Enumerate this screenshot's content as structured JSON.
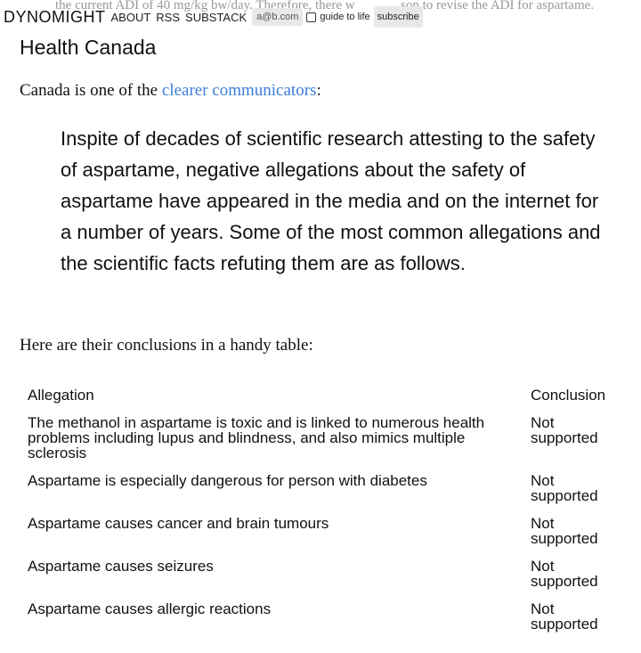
{
  "background_text": [
    "the current ADI of 40 mg/kg bw/day. Therefore, there w",
    "son to revise the ADI for aspartame."
  ],
  "header": {
    "brand": "DYNOMIGHT",
    "nav": [
      "ABOUT",
      "RSS",
      "SUBSTACK"
    ],
    "email_placeholder": "a@b.com",
    "checkbox_label": "guide to life",
    "button": "subscribe"
  },
  "section": {
    "heading": "Health Canada",
    "intro_before": "Canada is one of the ",
    "intro_link": "clearer communicators",
    "intro_after": ":",
    "quote": "Inspite of decades of scientific research attesting to the safety of aspartame, negative allegations about the safety of aspartame have appeared in the media and on the internet for a number of years. Some of the most common allegations and the scientific facts refuting them are as follows.",
    "table_intro": "Here are their conclusions in a handy table:"
  },
  "table": {
    "columns": [
      "Allegation",
      "Conclusion"
    ],
    "rows": [
      [
        "The methanol in aspartame is toxic and is linked to numerous health problems including lupus and blindness, and also mimics multiple sclerosis",
        "Not supported"
      ],
      [
        "Aspartame is especially dangerous for person with diabetes",
        "Not supported"
      ],
      [
        "Aspartame causes cancer and brain tumours",
        "Not supported"
      ],
      [
        "Aspartame causes seizures",
        "Not supported"
      ],
      [
        "Aspartame causes allergic reactions",
        "Not supported"
      ]
    ]
  }
}
